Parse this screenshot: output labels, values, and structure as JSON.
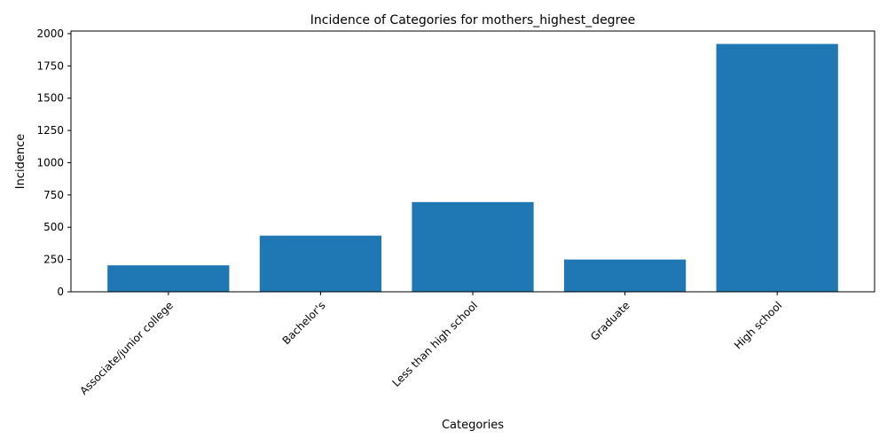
{
  "chart_data": {
    "type": "bar",
    "title": "Incidence of Categories for mothers_highest_degree",
    "xlabel": "Categories",
    "ylabel": "Incidence",
    "categories": [
      "Associate/junior college",
      "Bachelor's",
      "Less than high school",
      "Graduate",
      "High school"
    ],
    "values": [
      205,
      435,
      695,
      250,
      1920
    ],
    "ylim": [
      0,
      2020
    ],
    "yticks": [
      0,
      250,
      500,
      750,
      1000,
      1250,
      1500,
      1750,
      2000
    ],
    "grid": false,
    "bar_color": "#1f77b4"
  }
}
